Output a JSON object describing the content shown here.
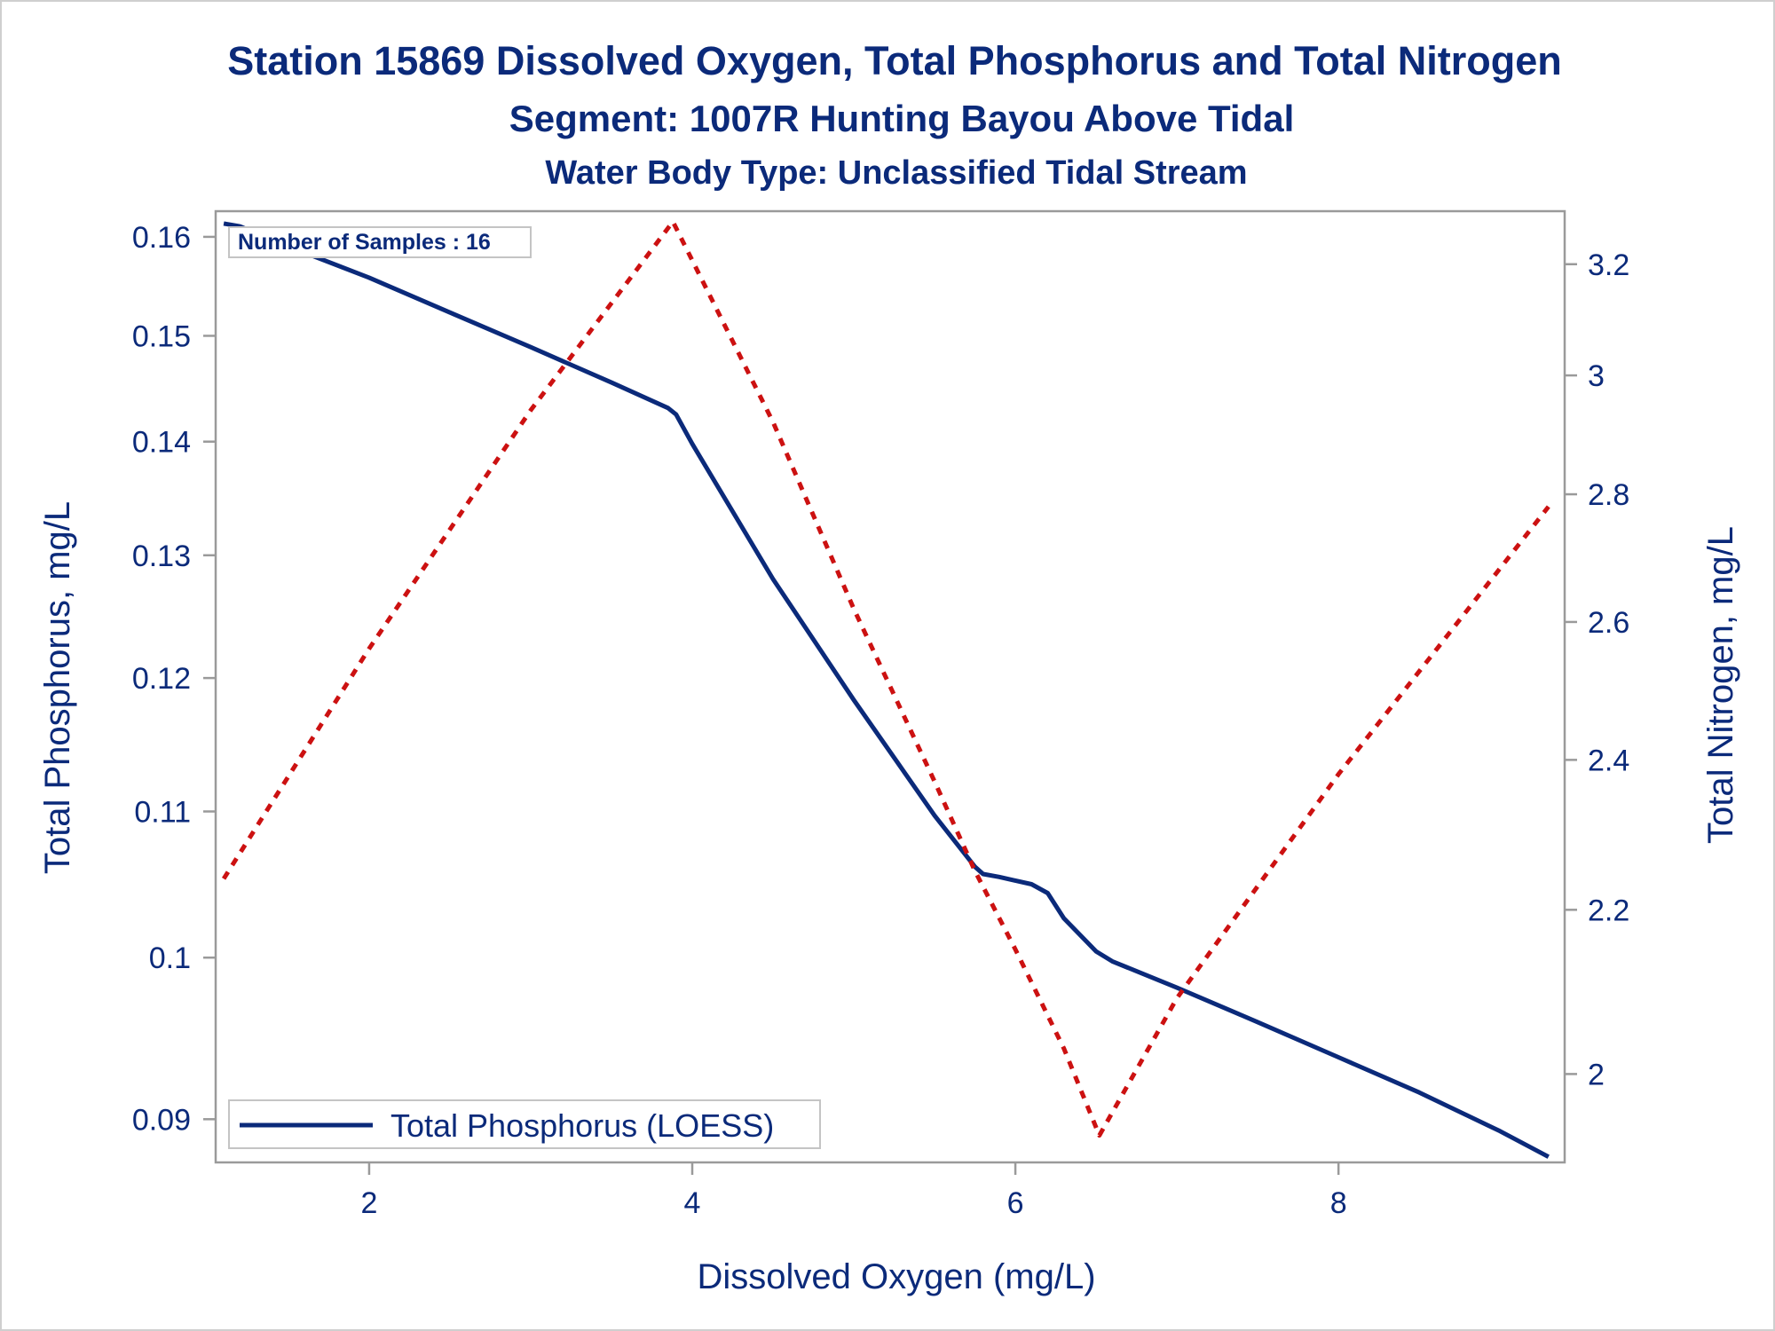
{
  "chart_data": {
    "type": "line",
    "title": "Station 15869  Dissolved Oxygen, Total Phosphorus and Total Nitrogen",
    "subtitle": "Segment: 1007R  Hunting Bayou Above Tidal",
    "subtitle2": "Water Body Type: Unclassified Tidal Stream",
    "xlabel": "Dissolved Oxygen (mg/L)",
    "ylabel": "Total Phosphorus, mg/L",
    "y2label": "Total Nitrogen, mg/L",
    "xlim": [
      1.05,
      9.4
    ],
    "ylim": [
      0.0875,
      0.1627
    ],
    "y2lim": [
      1.9,
      3.3
    ],
    "yscale": "log",
    "y2scale": "log",
    "x_ticks": [
      2,
      4,
      6,
      8
    ],
    "x_tick_labels": [
      "2",
      "4",
      "6",
      "8"
    ],
    "y_ticks": [
      0.09,
      0.1,
      0.11,
      0.12,
      0.13,
      0.14,
      0.15,
      0.16
    ],
    "y_tick_labels": [
      "0.09",
      "0.1",
      "0.11",
      "0.12",
      "0.13",
      "0.14",
      "0.15",
      "0.16"
    ],
    "y2_ticks": [
      2,
      2.2,
      2.4,
      2.6,
      2.8,
      3,
      3.2
    ],
    "y2_tick_labels": [
      "2",
      "2.2",
      "2.4",
      "2.6",
      "2.8",
      "3",
      "3.2"
    ],
    "inset_label": "Number of Samples : 16",
    "legend": {
      "position": "bottom-left",
      "entries": [
        "Total Phosphorus (LOESS)"
      ]
    },
    "grid": false,
    "series": [
      {
        "name": "Total Phosphorus (LOESS)",
        "axis": "left",
        "color": "#0b2a7a",
        "style": "solid",
        "x": [
          1.1,
          1.2,
          1.5,
          2.0,
          2.5,
          3.0,
          3.5,
          3.85,
          3.9,
          4.0,
          4.5,
          5.0,
          5.5,
          5.75,
          5.8,
          5.9,
          6.1,
          6.2,
          6.3,
          6.5,
          6.6,
          7.0,
          7.5,
          8.0,
          8.5,
          9.0,
          9.3
        ],
        "values": [
          0.1614,
          0.1611,
          0.159,
          0.1558,
          0.1523,
          0.1489,
          0.1455,
          0.1431,
          0.1425,
          0.1398,
          0.128,
          0.1183,
          0.1097,
          0.1061,
          0.1056,
          0.1054,
          0.1049,
          0.1043,
          0.1026,
          0.1004,
          0.09976,
          0.09806,
          0.09588,
          0.09371,
          0.09158,
          0.0893,
          0.08782
        ]
      },
      {
        "name": "",
        "axis": "right",
        "color": "#cc1111",
        "style": "dashed",
        "x": [
          1.1,
          2.0,
          3.0,
          3.88,
          4.5,
          5.0,
          5.5,
          5.75,
          6.0,
          6.3,
          6.52,
          7.0,
          8.0,
          9.3
        ],
        "values": [
          2.24,
          2.56,
          2.94,
          3.28,
          2.92,
          2.62,
          2.37,
          2.25,
          2.15,
          2.03,
          1.93,
          2.09,
          2.38,
          2.78
        ]
      }
    ]
  }
}
